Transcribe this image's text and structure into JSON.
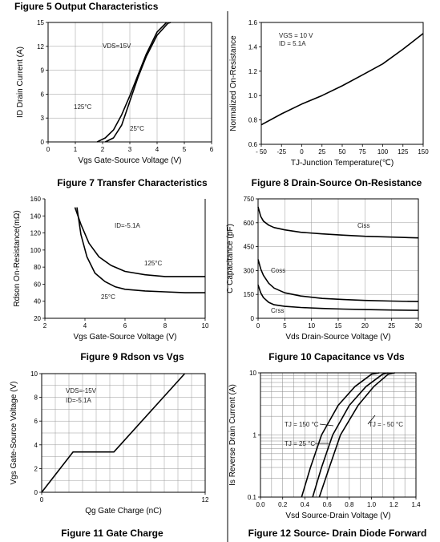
{
  "captions": {
    "top_title": "Figure 5 Output Characteristics",
    "fig7": "Figure 7 Transfer Characteristics",
    "fig8": "Figure 8 Drain-Source On-Resistance",
    "fig9": "Figure 9 Rdson vs Vgs",
    "fig10": "Figure 10 Capacitance vs Vds",
    "fig11": "Figure 11 Gate Charge",
    "fig12": "Figure 12 Source- Drain Diode Forward"
  },
  "chart_data": [
    {
      "id": "c1",
      "type": "line",
      "xlabel": "Vgs Gate-Source Voltage (V)",
      "ylabel": "ID Drain Current (A)",
      "xlim": [
        0,
        6
      ],
      "ylim": [
        0,
        15
      ],
      "xticks": [
        "0",
        "1",
        "2",
        "3",
        "4",
        "5",
        "6"
      ],
      "yticks": [
        "0",
        "3",
        "6",
        "9",
        "12",
        "15"
      ],
      "grid": true,
      "annotations": [
        "VDS=15V",
        "125°C",
        "25°C"
      ],
      "series": [
        {
          "name": "125°C",
          "x": [
            1.8,
            2.1,
            2.4,
            2.7,
            3.0,
            3.3,
            3.6,
            4.0,
            4.35
          ],
          "y": [
            0,
            0.5,
            1.5,
            3.4,
            5.8,
            8.4,
            11.0,
            13.8,
            15
          ]
        },
        {
          "name": "25°C",
          "x": [
            2.1,
            2.4,
            2.7,
            3.0,
            3.3,
            3.6,
            4.0,
            4.4,
            4.5
          ],
          "y": [
            0,
            0.5,
            2.1,
            5.1,
            8.1,
            10.7,
            13.4,
            14.9,
            15
          ]
        }
      ]
    },
    {
      "id": "c2",
      "type": "line",
      "xlabel": "TJ-Junction Temperature(℃)",
      "ylabel": "Normalized On-Resistance",
      "xlim": [
        -50,
        150
      ],
      "ylim": [
        0.6,
        1.6
      ],
      "xticks": [
        "- 50",
        "-25",
        "0",
        "25",
        "50",
        "75",
        "100",
        "125",
        "150"
      ],
      "yticks": [
        "0.6",
        "0.8",
        "1.0",
        "1.2",
        "1.4",
        "1.6"
      ],
      "grid": false,
      "annotations": [
        "VGS = 10 V",
        "ID = 5.1A"
      ],
      "series": [
        {
          "name": "",
          "x": [
            -50,
            -25,
            0,
            25,
            50,
            75,
            100,
            125,
            150
          ],
          "y": [
            0.76,
            0.85,
            0.93,
            1.0,
            1.08,
            1.17,
            1.26,
            1.38,
            1.51
          ]
        }
      ]
    },
    {
      "id": "c3",
      "type": "line",
      "xlabel": "Vgs Gate-Source Voltage (V)",
      "ylabel": "Rdson On-Resistance(mΩ)",
      "xlim": [
        2,
        10
      ],
      "ylim": [
        20,
        160
      ],
      "xticks": [
        "2",
        "4",
        "6",
        "8",
        "10"
      ],
      "yticks": [
        "20",
        "40",
        "60",
        "80",
        "100",
        "120",
        "140",
        "160"
      ],
      "grid": false,
      "annotations": [
        "ID=-5.1A",
        "125°C",
        "25°C"
      ],
      "series": [
        {
          "name": "125°C",
          "x": [
            3.5,
            3.8,
            4.2,
            4.7,
            5.3,
            6,
            7,
            8,
            9,
            10
          ],
          "y": [
            150,
            130,
            108,
            92,
            82,
            75,
            71,
            69,
            69,
            69
          ]
        },
        {
          "name": "25°C",
          "x": [
            3.6,
            3.8,
            4.1,
            4.5,
            5,
            5.5,
            6,
            7,
            8,
            9,
            10
          ],
          "y": [
            150,
            118,
            92,
            73,
            63,
            57,
            54,
            52,
            51,
            50,
            50
          ]
        }
      ]
    },
    {
      "id": "c4",
      "type": "line",
      "xlabel": "Vds Drain-Source Voltage (V)",
      "ylabel": "C Capacitance (pF)",
      "xlim": [
        0,
        30
      ],
      "ylim": [
        0,
        750
      ],
      "xticks": [
        "0",
        "5",
        "10",
        "15",
        "20",
        "25",
        "30"
      ],
      "yticks": [
        "0",
        "150",
        "300",
        "450",
        "600",
        "750"
      ],
      "grid": true,
      "annotations": [
        "Ciss",
        "Coss",
        "Crss"
      ],
      "series": [
        {
          "name": "Ciss",
          "x": [
            0,
            0.5,
            1,
            2,
            3,
            5,
            8,
            12,
            16,
            20,
            25,
            30
          ],
          "y": [
            700,
            640,
            610,
            585,
            570,
            555,
            540,
            530,
            522,
            515,
            510,
            505
          ]
        },
        {
          "name": "Coss",
          "x": [
            0,
            0.5,
            1,
            2,
            3,
            5,
            8,
            12,
            16,
            20,
            25,
            30
          ],
          "y": [
            370,
            310,
            270,
            220,
            190,
            160,
            140,
            125,
            118,
            112,
            108,
            105
          ]
        },
        {
          "name": "Crss",
          "x": [
            0,
            0.5,
            1,
            2,
            3,
            5,
            8,
            12,
            16,
            20,
            25,
            30
          ],
          "y": [
            210,
            160,
            130,
            100,
            85,
            75,
            68,
            62,
            58,
            55,
            52,
            50
          ]
        }
      ]
    },
    {
      "id": "c5",
      "type": "line",
      "xlabel": "Qg Gate Charge (nC)",
      "ylabel": "Vgs Gate-Source Voltage (V)",
      "xlim": [
        0,
        12
      ],
      "ylim": [
        0,
        10
      ],
      "xticks": [
        "0",
        "12"
      ],
      "yticks": [
        "0",
        "2",
        "4",
        "6",
        "8",
        "10"
      ],
      "grid": true,
      "annotations": [
        "VDS=-15V",
        "ID=-5.1A"
      ],
      "series": [
        {
          "name": "",
          "x": [
            0,
            2.3,
            5.3,
            10.5
          ],
          "y": [
            0,
            3.4,
            3.4,
            10
          ]
        }
      ]
    },
    {
      "id": "c6",
      "type": "line",
      "xlabel": "Vsd Source-Drain Voltage (V)",
      "ylabel": "Is Reverse Drain Current (A)",
      "xlim": [
        0,
        1.4
      ],
      "ylim": [
        0.1,
        10
      ],
      "yscale": "log",
      "xticks": [
        "0.0",
        "0.2",
        "0.4",
        "0.6",
        "0.8",
        "1.0",
        "1.2",
        "1.4"
      ],
      "yticks": [
        "0.1",
        "1",
        "10"
      ],
      "grid": true,
      "annotations": [
        "TJ = 150 °C",
        "TJ = 25 °C",
        "TJ = - 50 °C"
      ],
      "series": [
        {
          "name": "TJ = 150 °C",
          "x": [
            0.37,
            0.45,
            0.55,
            0.7,
            0.85,
            1.0,
            1.07
          ],
          "y": [
            0.1,
            0.3,
            1,
            3,
            6,
            9.5,
            10
          ]
        },
        {
          "name": "TJ = 25 °C",
          "x": [
            0.47,
            0.55,
            0.65,
            0.8,
            0.95,
            1.1,
            1.15
          ],
          "y": [
            0.1,
            0.3,
            1,
            3,
            6,
            9.5,
            10
          ]
        },
        {
          "name": "TJ = - 50 °C",
          "x": [
            0.53,
            0.62,
            0.72,
            0.88,
            1.02,
            1.15,
            1.21
          ],
          "y": [
            0.1,
            0.3,
            1,
            3,
            6,
            9.5,
            10
          ]
        }
      ]
    }
  ]
}
